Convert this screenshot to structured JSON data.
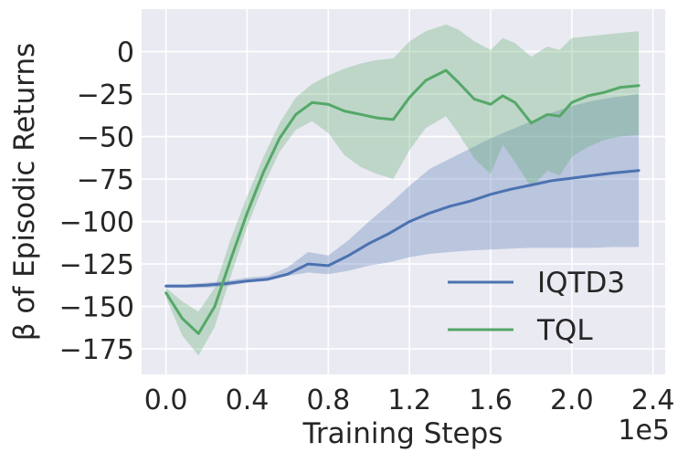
{
  "chart_data": {
    "type": "line",
    "xlabel": "Training Steps",
    "ylabel": "β of Episodic Returns",
    "x_offset_label": "1e5",
    "xlim": [
      -0.12,
      2.46
    ],
    "ylim": [
      -190,
      25
    ],
    "xticks": [
      0.0,
      0.4,
      0.8,
      1.2,
      1.6,
      2.0,
      2.4
    ],
    "xtick_labels": [
      "0.0",
      "0.4",
      "0.8",
      "1.2",
      "1.6",
      "2.0",
      "2.4"
    ],
    "yticks": [
      0,
      -25,
      -50,
      -75,
      -100,
      -125,
      -150,
      -175
    ],
    "ytick_labels": [
      "0",
      "−25",
      "−50",
      "−75",
      "−100",
      "−125",
      "−150",
      "−175"
    ],
    "grid": true,
    "legend_position": "lower-right",
    "series": [
      {
        "name": "IQTD3",
        "color": "#4c72b0",
        "x": [
          0.0,
          0.1,
          0.2,
          0.3,
          0.4,
          0.5,
          0.6,
          0.7,
          0.8,
          0.9,
          1.0,
          1.1,
          1.2,
          1.3,
          1.4,
          1.5,
          1.6,
          1.7,
          1.8,
          1.9,
          2.0,
          2.1,
          2.2,
          2.33
        ],
        "y": [
          -138,
          -138,
          -137.5,
          -136.5,
          -135,
          -134,
          -131,
          -125,
          -126,
          -120,
          -113,
          -107,
          -100,
          -95,
          -91,
          -88,
          -84,
          -81,
          -78.5,
          -76,
          -74.5,
          -73,
          -71.5,
          -70
        ],
        "y_lower": [
          -139,
          -139,
          -139,
          -138,
          -136,
          -135,
          -132,
          -130,
          -131,
          -129,
          -126,
          -124,
          -121,
          -119,
          -118,
          -117,
          -116.5,
          -116,
          -115.5,
          -115.5,
          -115.5,
          -115.5,
          -115,
          -115
        ],
        "y_upper": [
          -137,
          -137,
          -136,
          -135,
          -133,
          -132,
          -127,
          -118,
          -120,
          -111,
          -100,
          -90,
          -79,
          -69,
          -63,
          -57,
          -51,
          -46,
          -41,
          -36,
          -32,
          -29,
          -27,
          -25
        ]
      },
      {
        "name": "TQL",
        "color": "#55a868",
        "x": [
          0.0,
          0.08,
          0.16,
          0.24,
          0.32,
          0.4,
          0.48,
          0.56,
          0.64,
          0.72,
          0.8,
          0.88,
          0.96,
          1.04,
          1.12,
          1.2,
          1.28,
          1.38,
          1.44,
          1.52,
          1.6,
          1.66,
          1.72,
          1.8,
          1.88,
          1.94,
          2.0,
          2.08,
          2.16,
          2.24,
          2.33
        ],
        "y": [
          -142,
          -157,
          -166,
          -150,
          -122,
          -95,
          -71,
          -51,
          -37,
          -30,
          -31,
          -35,
          -37,
          -39,
          -40,
          -27,
          -17,
          -11,
          -18,
          -28,
          -31,
          -26,
          -30,
          -42,
          -37,
          -38,
          -30,
          -26,
          -24,
          -21,
          -20
        ],
        "y_lower": [
          -145,
          -167,
          -179,
          -162,
          -132,
          -103,
          -79,
          -59,
          -46,
          -41,
          -48,
          -61,
          -68,
          -72,
          -75,
          -58,
          -45,
          -38,
          -48,
          -63,
          -72,
          -55,
          -65,
          -80,
          -70,
          -73,
          -62,
          -56,
          -52,
          -50,
          -49
        ],
        "y_upper": [
          -139,
          -147,
          -153,
          -139,
          -110,
          -85,
          -62,
          -42,
          -27,
          -19,
          -14,
          -10,
          -7,
          -5,
          -4,
          6,
          12,
          16,
          13,
          6,
          1,
          8,
          5,
          -3,
          3,
          1,
          8,
          9,
          10,
          11,
          12
        ]
      }
    ]
  }
}
